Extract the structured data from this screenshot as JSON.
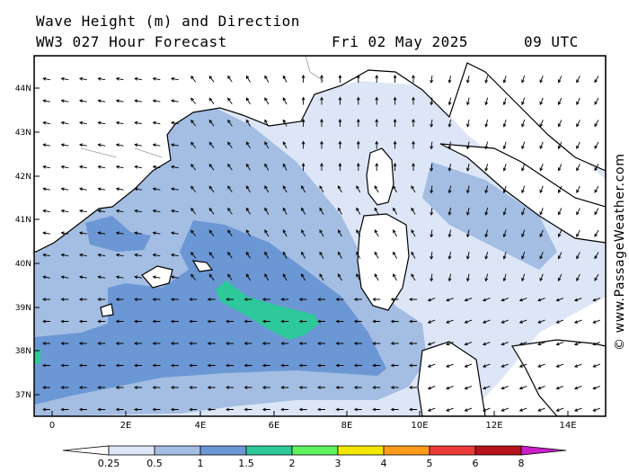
{
  "header": {
    "title": "Wave Height (m) and Direction",
    "model": "WW3 027 Hour Forecast",
    "date": "Fri 02 May 2025",
    "time": "09 UTC"
  },
  "credit": "© www.PassageWeather.com",
  "map": {
    "lat_labels": [
      "44N",
      "43N",
      "42N",
      "41N",
      "40N",
      "39N",
      "38N",
      "37N"
    ],
    "lon_labels": [
      "0",
      "2E",
      "4E",
      "6E",
      "8E",
      "10E",
      "12E",
      "14E"
    ]
  },
  "legend": {
    "units": "m",
    "tick_labels": [
      "0.25",
      "0.5",
      "1",
      "1.5",
      "2",
      "3",
      "4",
      "5",
      "6",
      "8"
    ],
    "colors": [
      "#ffffff",
      "#dde6f6",
      "#a3bde3",
      "#6b97d4",
      "#2dc99a",
      "#5ef25e",
      "#f4e800",
      "#ff9a1a",
      "#ef3a3a",
      "#b5121b",
      "#c81fc8"
    ]
  }
}
